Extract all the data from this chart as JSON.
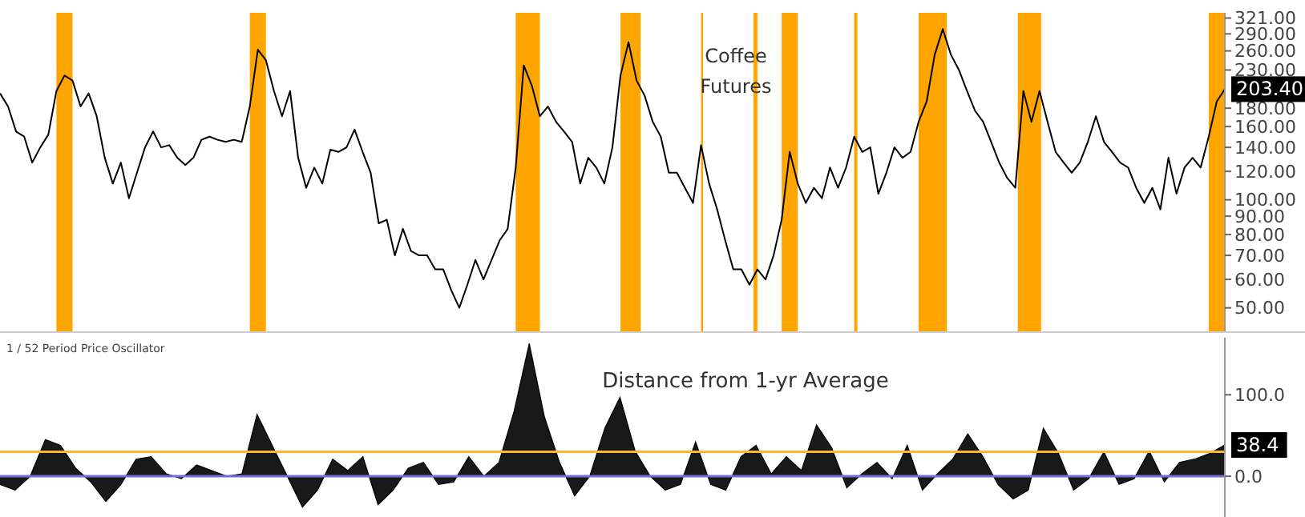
{
  "chart_data": [
    {
      "type": "line",
      "title": "Coffee Futures",
      "log": "y",
      "legend": false,
      "grid": false,
      "tick_labels": "y",
      "marker": "none",
      "line_style": "solid",
      "ylim": [
        43,
        332
      ],
      "categories": [
        null,
        null,
        null,
        null,
        null,
        null,
        null,
        null,
        null,
        null,
        null,
        null,
        null,
        null,
        null,
        null,
        null,
        null,
        null,
        null,
        null,
        null,
        null,
        null,
        null,
        null,
        null,
        null,
        null,
        null,
        null,
        null,
        null,
        null,
        null,
        null,
        null,
        null,
        null,
        null,
        null,
        null,
        null,
        null,
        null,
        null,
        null,
        null,
        null,
        null,
        null,
        null,
        null,
        null,
        null,
        null,
        null,
        null,
        null,
        null,
        null,
        null,
        null,
        null,
        null,
        null,
        null,
        null,
        null,
        null,
        null,
        null,
        null,
        null,
        null,
        null,
        null,
        null,
        null,
        null,
        null,
        null,
        null,
        null,
        null,
        null,
        null,
        null,
        null,
        null,
        null,
        null,
        null,
        null,
        null,
        null,
        null,
        null,
        null,
        null,
        null,
        null,
        null,
        null,
        null,
        null,
        null,
        null,
        null,
        null,
        null,
        null,
        null,
        null,
        null,
        null,
        null,
        null,
        null,
        null,
        null,
        null,
        null,
        null,
        null,
        null,
        null,
        null,
        null,
        null,
        null,
        null,
        null,
        null,
        null,
        null,
        null,
        null,
        null,
        null,
        null,
        null,
        null,
        null,
        null,
        null,
        null,
        null,
        null,
        null,
        null,
        null,
        null
      ],
      "yticks": [
        {
          "value": 50,
          "label": "50.00"
        },
        {
          "value": 60,
          "label": "60.00"
        },
        {
          "value": 70,
          "label": "70.00"
        },
        {
          "value": 80,
          "label": "80.00"
        },
        {
          "value": 90,
          "label": "90.00"
        },
        {
          "value": 100,
          "label": "100.00"
        },
        {
          "value": 120,
          "label": "120.00"
        },
        {
          "value": 140,
          "label": "140.00"
        },
        {
          "value": 160,
          "label": "160.00"
        },
        {
          "value": 180,
          "label": "180.00"
        },
        {
          "value": 230,
          "label": "230.00"
        },
        {
          "value": 260,
          "label": "260.00"
        },
        {
          "value": 290,
          "label": "290.00"
        },
        {
          "value": 321,
          "label": "321.00"
        }
      ],
      "series": [
        {
          "color": "#000000",
          "values": [
            198,
            182,
            155,
            150,
            127,
            140,
            152,
            201,
            222,
            215,
            182,
            198,
            171,
            131,
            111,
            127,
            101,
            119,
            140,
            155,
            140,
            142,
            131,
            125,
            131,
            147,
            150,
            147,
            145,
            147,
            145,
            182,
            262,
            245,
            201,
            171,
            201,
            131,
            108,
            123,
            111,
            138,
            136,
            140,
            157,
            136,
            119,
            86,
            88,
            70,
            83,
            72,
            70,
            70,
            64,
            64,
            56,
            50,
            58,
            68,
            60,
            68,
            77,
            83,
            123,
            237,
            208,
            171,
            182,
            165,
            155,
            145,
            111,
            131,
            123,
            111,
            140,
            222,
            275,
            215,
            195,
            165,
            150,
            119,
            119,
            108,
            98,
            142,
            111,
            94,
            77,
            64,
            64,
            58,
            64,
            60,
            70,
            88,
            136,
            111,
            98,
            108,
            101,
            123,
            108,
            123,
            150,
            136,
            140,
            104,
            119,
            140,
            131,
            136,
            165,
            188,
            254,
            299,
            254,
            230,
            201,
            177,
            165,
            145,
            127,
            115,
            108,
            201,
            165,
            201,
            165,
            136,
            127,
            119,
            127,
            145,
            171,
            145,
            136,
            127,
            123,
            108,
            98,
            108,
            94,
            131,
            104,
            123,
            131,
            123,
            150,
            188,
            203.4
          ],
          "value_labels": [
            null,
            null,
            null,
            null,
            null,
            null,
            null,
            null,
            null,
            null,
            null,
            null,
            null,
            null,
            null,
            null,
            null,
            null,
            null,
            null,
            null,
            null,
            null,
            null,
            null,
            null,
            null,
            null,
            null,
            null,
            null,
            null,
            null,
            null,
            null,
            null,
            null,
            null,
            null,
            null,
            null,
            null,
            null,
            null,
            null,
            null,
            null,
            null,
            null,
            null,
            null,
            null,
            null,
            null,
            null,
            null,
            null,
            null,
            null,
            null,
            null,
            null,
            null,
            null,
            null,
            null,
            null,
            null,
            null,
            null,
            null,
            null,
            null,
            null,
            null,
            null,
            null,
            null,
            null,
            null,
            null,
            null,
            null,
            null,
            null,
            null,
            null,
            null,
            null,
            null,
            null,
            null,
            null,
            null,
            null,
            null,
            null,
            null,
            null,
            null,
            null,
            null,
            null,
            null,
            null,
            null,
            null,
            null,
            null,
            null,
            null,
            null,
            null,
            null,
            null,
            null,
            null,
            null,
            null,
            null,
            null,
            null,
            null,
            null,
            null,
            null,
            null,
            null,
            null,
            null,
            null,
            null,
            null,
            null,
            null,
            null,
            null,
            null,
            null,
            null,
            null,
            null,
            null,
            null,
            null,
            null,
            null,
            null,
            null,
            null,
            null,
            null,
            "203.40"
          ]
        }
      ]
    },
    {
      "type": "area",
      "title": "Distance from 1-yr Average",
      "subtitle": "1 / 52 Period Price Oscillator",
      "legend": false,
      "grid": false,
      "tick_labels": "y",
      "ylim": [
        -50,
        170
      ],
      "categories": [
        null,
        null,
        null,
        null,
        null,
        null,
        null,
        null,
        null,
        null,
        null,
        null,
        null,
        null,
        null,
        null,
        null,
        null,
        null,
        null,
        null,
        null,
        null,
        null,
        null,
        null,
        null,
        null,
        null,
        null,
        null,
        null,
        null,
        null,
        null,
        null,
        null,
        null,
        null,
        null,
        null,
        null,
        null,
        null,
        null,
        null,
        null,
        null,
        null,
        null,
        null,
        null,
        null,
        null,
        null,
        null,
        null,
        null,
        null,
        null,
        null,
        null,
        null,
        null,
        null,
        null,
        null,
        null,
        null,
        null,
        null,
        null,
        null,
        null,
        null,
        null,
        null,
        null,
        null,
        null,
        null,
        null
      ],
      "yticks": [
        {
          "value": 0,
          "label": "0.0"
        },
        {
          "value": 100,
          "label": "100.0"
        }
      ],
      "series": [
        {
          "color": "#000000",
          "values": [
            -10,
            -17,
            0,
            45,
            38,
            10,
            -7,
            -31,
            -10,
            21,
            24,
            3,
            -3,
            14,
            7,
            0,
            3,
            76,
            38,
            0,
            -38,
            -17,
            21,
            7,
            24,
            -35,
            -17,
            10,
            17,
            -10,
            -7,
            24,
            0,
            17,
            80,
            163,
            73,
            17,
            -24,
            0,
            59,
            97,
            31,
            0,
            -17,
            -10,
            42,
            -10,
            -17,
            24,
            38,
            3,
            24,
            7,
            63,
            35,
            -14,
            3,
            17,
            -3,
            38,
            -17,
            3,
            21,
            52,
            24,
            -10,
            -28,
            -17,
            59,
            28,
            -17,
            -3,
            30,
            -10,
            -3,
            31,
            -7,
            17,
            21,
            28,
            38.4
          ],
          "value_labels": [
            null,
            null,
            null,
            null,
            null,
            null,
            null,
            null,
            null,
            null,
            null,
            null,
            null,
            null,
            null,
            null,
            null,
            null,
            null,
            null,
            null,
            null,
            null,
            null,
            null,
            null,
            null,
            null,
            null,
            null,
            null,
            null,
            null,
            null,
            null,
            null,
            null,
            null,
            null,
            null,
            null,
            null,
            null,
            null,
            null,
            null,
            null,
            null,
            null,
            null,
            null,
            null,
            null,
            null,
            null,
            null,
            null,
            null,
            null,
            null,
            null,
            null,
            null,
            null,
            null,
            null,
            null,
            null,
            null,
            null,
            null,
            null,
            null,
            null,
            null,
            null,
            null,
            null,
            null,
            null,
            null,
            "38.4"
          ]
        }
      ],
      "ref_lines": [
        {
          "axis": "y",
          "value": 30,
          "color": "#ffb733"
        },
        {
          "axis": "y",
          "value": 0,
          "color": "#6f6fd8"
        }
      ]
    }
  ]
}
